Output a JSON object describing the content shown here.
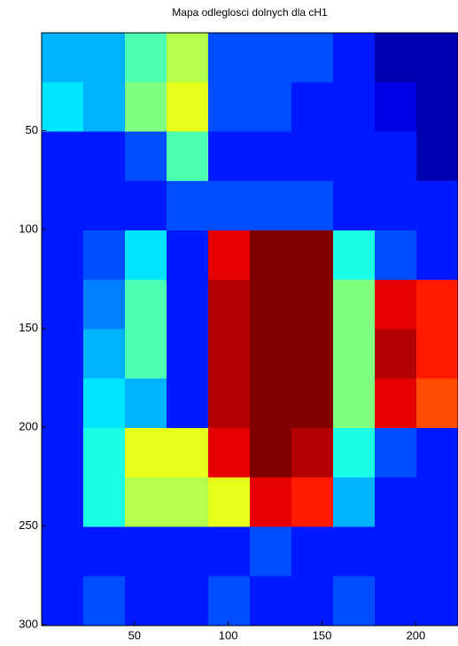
{
  "chart_data": {
    "type": "heatmap",
    "title": "Mapa odleglosci dolnych dla cH1",
    "colormap": "jet",
    "clim": [
      0,
      1
    ],
    "xlim": [
      0.5,
      222.5
    ],
    "ylim": [
      0.5,
      300.5
    ],
    "y_reversed": true,
    "xticks": [
      50,
      100,
      150,
      200
    ],
    "yticks": [
      50,
      100,
      150,
      200,
      250,
      300
    ],
    "z": [
      [
        0.3,
        0.3,
        0.45,
        0.55,
        0.2,
        0.2,
        0.2,
        0.15,
        0.05,
        0.05
      ],
      [
        0.35,
        0.3,
        0.5,
        0.6,
        0.2,
        0.2,
        0.15,
        0.15,
        0.1,
        0.05
      ],
      [
        0.15,
        0.15,
        0.2,
        0.45,
        0.15,
        0.15,
        0.15,
        0.15,
        0.15,
        0.05
      ],
      [
        0.15,
        0.15,
        0.15,
        0.2,
        0.2,
        0.2,
        0.2,
        0.15,
        0.15,
        0.15
      ],
      [
        0.15,
        0.2,
        0.35,
        0.15,
        0.9,
        1,
        1,
        0.4,
        0.2,
        0.15
      ],
      [
        0.15,
        0.25,
        0.45,
        0.15,
        0.95,
        1,
        1,
        0.5,
        0.9,
        0.85
      ],
      [
        0.15,
        0.3,
        0.45,
        0.15,
        0.95,
        1,
        1,
        0.5,
        0.95,
        0.85
      ],
      [
        0.15,
        0.35,
        0.3,
        0.15,
        0.95,
        1,
        1,
        0.5,
        0.9,
        0.8
      ],
      [
        0.15,
        0.4,
        0.6,
        0.6,
        0.9,
        1,
        0.95,
        0.4,
        0.2,
        0.15
      ],
      [
        0.15,
        0.4,
        0.55,
        0.55,
        0.6,
        0.9,
        0.85,
        0.3,
        0.15,
        0.15
      ],
      [
        0.15,
        0.15,
        0.15,
        0.15,
        0.15,
        0.2,
        0.15,
        0.15,
        0.15,
        0.15
      ],
      [
        0.15,
        0.2,
        0.15,
        0.15,
        0.2,
        0.15,
        0.15,
        0.2,
        0.15,
        0.15
      ]
    ]
  }
}
